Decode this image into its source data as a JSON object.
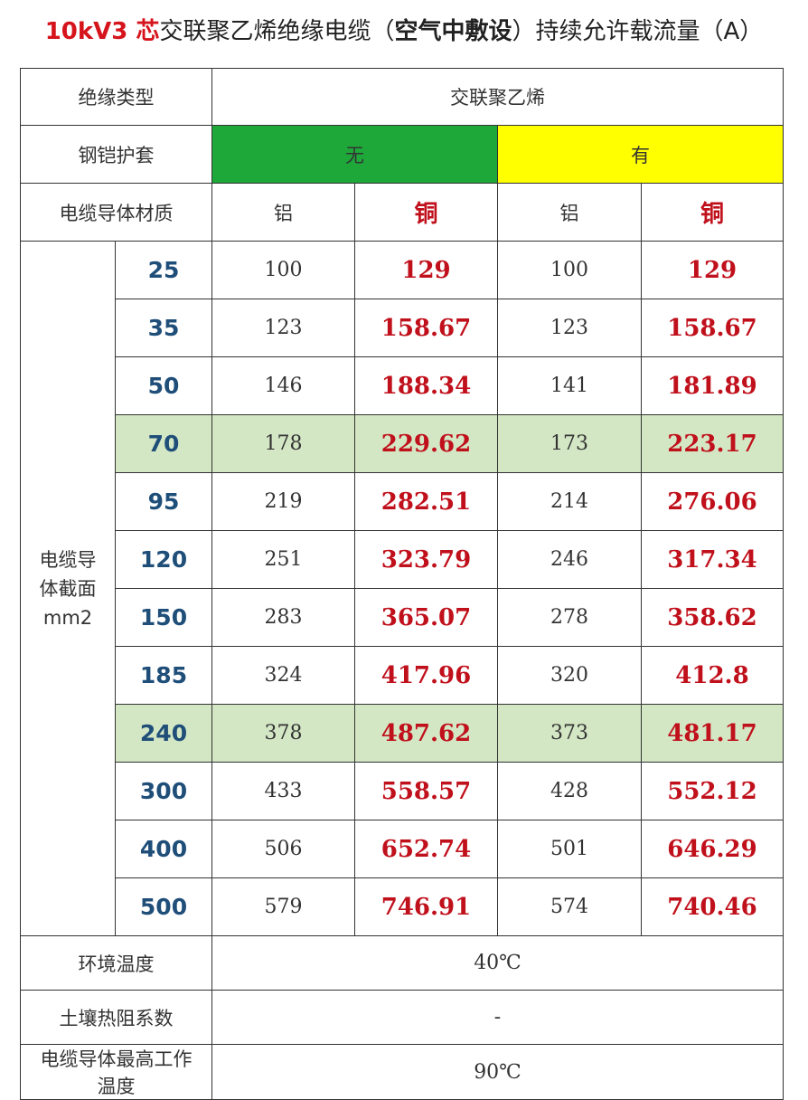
{
  "header": {
    "title_parts": [
      "10kV3 芯",
      "交联聚乙烯绝缘电缆（",
      "空气中敷设",
      "）持续允许载流量（A）"
    ]
  },
  "table": {
    "insulation_label": "绝缘类型",
    "insulation_value": "交联聚乙烯",
    "armor_label": "钢铠护套",
    "armor_no": "无",
    "armor_no_color": "#1ea83a",
    "armor_yes": "有",
    "armor_yes_color": "#ffff00",
    "material_label": "电缆导体材质",
    "materials": [
      "铝",
      "铜",
      "铝",
      "铜"
    ],
    "section_label": "电缆导体截面mm2",
    "rows": [
      {
        "size": 25,
        "values": [
          100,
          129,
          100,
          129
        ],
        "highlight": false
      },
      {
        "size": 35,
        "values": [
          123,
          158.67,
          123,
          158.67
        ],
        "highlight": false
      },
      {
        "size": 50,
        "values": [
          146,
          188.34,
          141,
          181.89
        ],
        "highlight": false
      },
      {
        "size": 70,
        "values": [
          178,
          229.62,
          173,
          223.17
        ],
        "highlight": true
      },
      {
        "size": 95,
        "values": [
          219,
          282.51,
          214,
          276.06
        ],
        "highlight": false
      },
      {
        "size": 120,
        "values": [
          251,
          323.79,
          246,
          317.34
        ],
        "highlight": false
      },
      {
        "size": 150,
        "values": [
          283,
          365.07,
          278,
          358.62
        ],
        "highlight": false
      },
      {
        "size": 185,
        "values": [
          324,
          417.96,
          320,
          412.8
        ],
        "highlight": false
      },
      {
        "size": 240,
        "values": [
          378,
          487.62,
          373,
          481.17
        ],
        "highlight": true
      },
      {
        "size": 300,
        "values": [
          433,
          558.57,
          428,
          552.12
        ],
        "highlight": false
      },
      {
        "size": 400,
        "values": [
          506,
          652.74,
          501,
          646.29
        ],
        "highlight": false
      },
      {
        "size": 500,
        "values": [
          579,
          746.91,
          574,
          740.46
        ],
        "highlight": false
      }
    ],
    "footer": [
      [
        "环境温度",
        "40℃"
      ],
      [
        "土壤热阻系数",
        "-"
      ],
      [
        "电缆导体最高工作温度",
        "90℃"
      ]
    ]
  }
}
